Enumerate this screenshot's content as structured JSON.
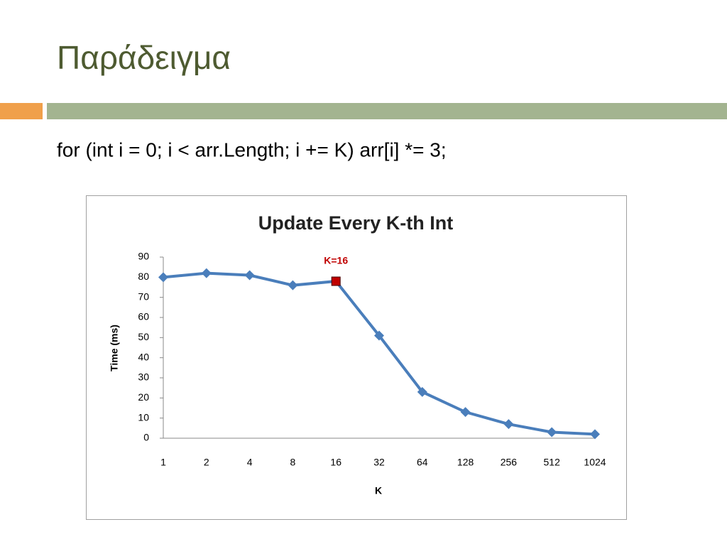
{
  "slide": {
    "title": "Παράδειγμα",
    "code": "for (int i = 0; i < arr.Length; i += K) arr[i] *= 3;"
  },
  "chart_data": {
    "type": "line",
    "title": "Update Every K-th Int",
    "x_label": "K",
    "y_label": "Time (ms)",
    "categories": [
      "1",
      "2",
      "4",
      "8",
      "16",
      "32",
      "64",
      "128",
      "256",
      "512",
      "1024"
    ],
    "values": [
      80,
      82,
      81,
      76,
      78,
      51,
      23,
      13,
      7,
      3,
      2
    ],
    "color": "#4a7ebb",
    "ylim": [
      0,
      90
    ],
    "yticks": [
      0,
      10,
      20,
      30,
      40,
      50,
      60,
      70,
      80,
      90
    ],
    "annotation": {
      "text": "K=16",
      "index": 4,
      "color": "#c00000"
    }
  }
}
